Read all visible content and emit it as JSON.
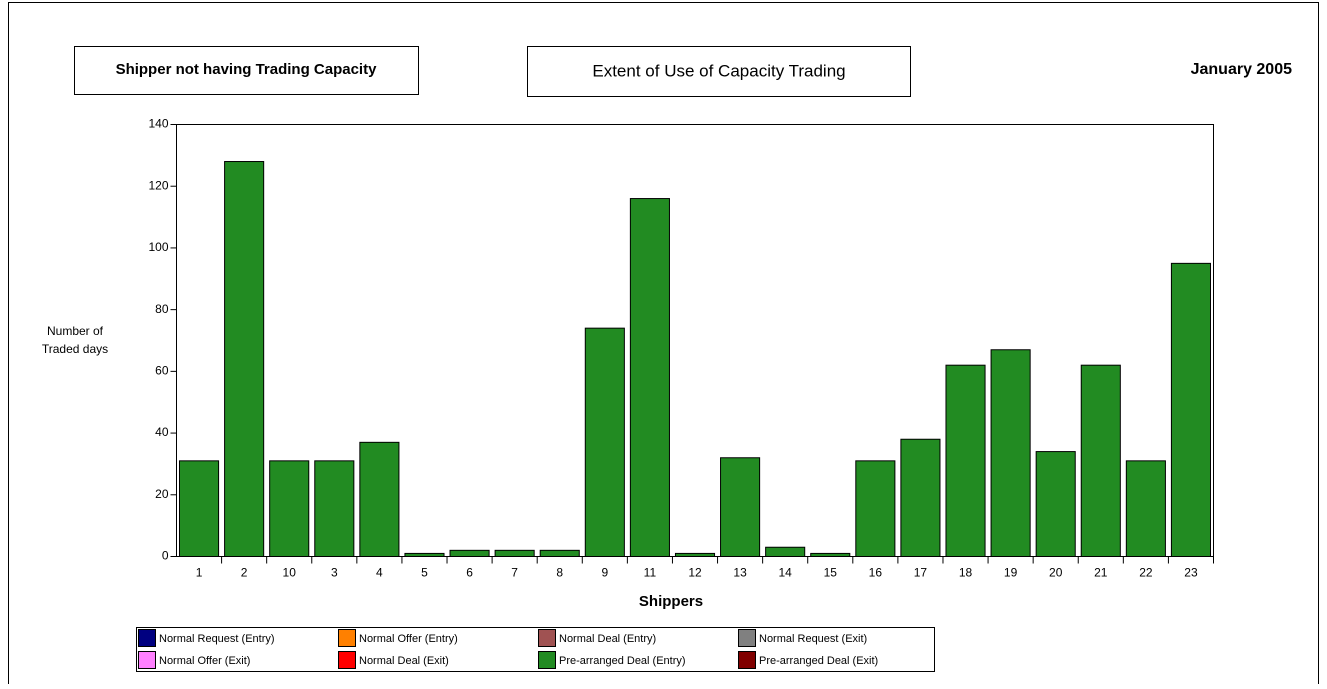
{
  "chart_data": {
    "type": "bar",
    "stacked": true,
    "title": "Extent of Use of Capacity Trading",
    "subtitle": "Shipper not having Trading Capacity",
    "date": "January 2005",
    "ylabel": [
      "Number of",
      "Traded days"
    ],
    "xlabel": "Shippers",
    "categories": [
      "1",
      "2",
      "10",
      "3",
      "4",
      "5",
      "6",
      "7",
      "8",
      "9",
      "11",
      "12",
      "13",
      "14",
      "15",
      "16",
      "17",
      "18",
      "19",
      "20",
      "21",
      "22",
      "23"
    ],
    "series": [
      {
        "name": "Normal Request (Entry)",
        "color": "#000080",
        "values": [
          0,
          0,
          0,
          0,
          0,
          0,
          0,
          0,
          0,
          0,
          0,
          0,
          0,
          0,
          0,
          0,
          0,
          0,
          0,
          0,
          0,
          0,
          0
        ]
      },
      {
        "name": "Normal Offer (Entry)",
        "color": "#ff8000",
        "values": [
          0,
          0,
          0,
          0,
          0,
          0,
          0,
          0,
          0,
          0,
          0,
          0,
          0,
          0,
          0,
          0,
          0,
          0,
          0,
          0,
          0,
          0,
          0
        ]
      },
      {
        "name": "Normal Deal (Entry)",
        "color": "#a05252",
        "values": [
          0,
          0,
          0,
          0,
          0,
          0,
          0,
          0,
          0,
          0,
          0,
          0,
          0,
          0,
          0,
          0,
          0,
          0,
          0,
          0,
          0,
          0,
          0
        ]
      },
      {
        "name": "Normal Request (Exit)",
        "color": "#808080",
        "values": [
          0,
          0,
          0,
          0,
          0,
          0,
          0,
          0,
          0,
          0,
          0,
          0,
          0,
          0,
          0,
          0,
          0,
          0,
          0,
          0,
          0,
          0,
          0
        ]
      },
      {
        "name": "Normal Offer (Exit)",
        "color": "#ff80ff",
        "values": [
          0,
          0,
          0,
          0,
          0,
          0,
          0,
          0,
          0,
          0,
          0,
          0,
          0,
          0,
          0,
          0,
          0,
          0,
          0,
          0,
          0,
          0,
          0
        ]
      },
      {
        "name": "Normal Deal (Exit)",
        "color": "#ff0000",
        "values": [
          0,
          0,
          0,
          0,
          0,
          0,
          0,
          0,
          0,
          0,
          0,
          0,
          0,
          0,
          0,
          0,
          0,
          0,
          0,
          0,
          0,
          0,
          0
        ]
      },
      {
        "name": "Pre-arranged Deal (Entry)",
        "color": "#228b22",
        "values": [
          31,
          128,
          31,
          31,
          37,
          1,
          2,
          2,
          2,
          74,
          116,
          1,
          32,
          3,
          1,
          31,
          38,
          62,
          67,
          34,
          62,
          31,
          95
        ]
      },
      {
        "name": "Pre-arranged Deal (Exit)",
        "color": "#800000",
        "values": [
          0,
          0,
          0,
          0,
          0,
          0,
          0,
          0,
          0,
          0,
          0,
          0,
          0,
          0,
          0,
          0,
          0,
          0,
          0,
          0,
          0,
          0,
          0
        ]
      }
    ],
    "ylim": [
      0,
      140
    ],
    "yticks": [
      0,
      20,
      40,
      60,
      80,
      100,
      120,
      140
    ]
  }
}
